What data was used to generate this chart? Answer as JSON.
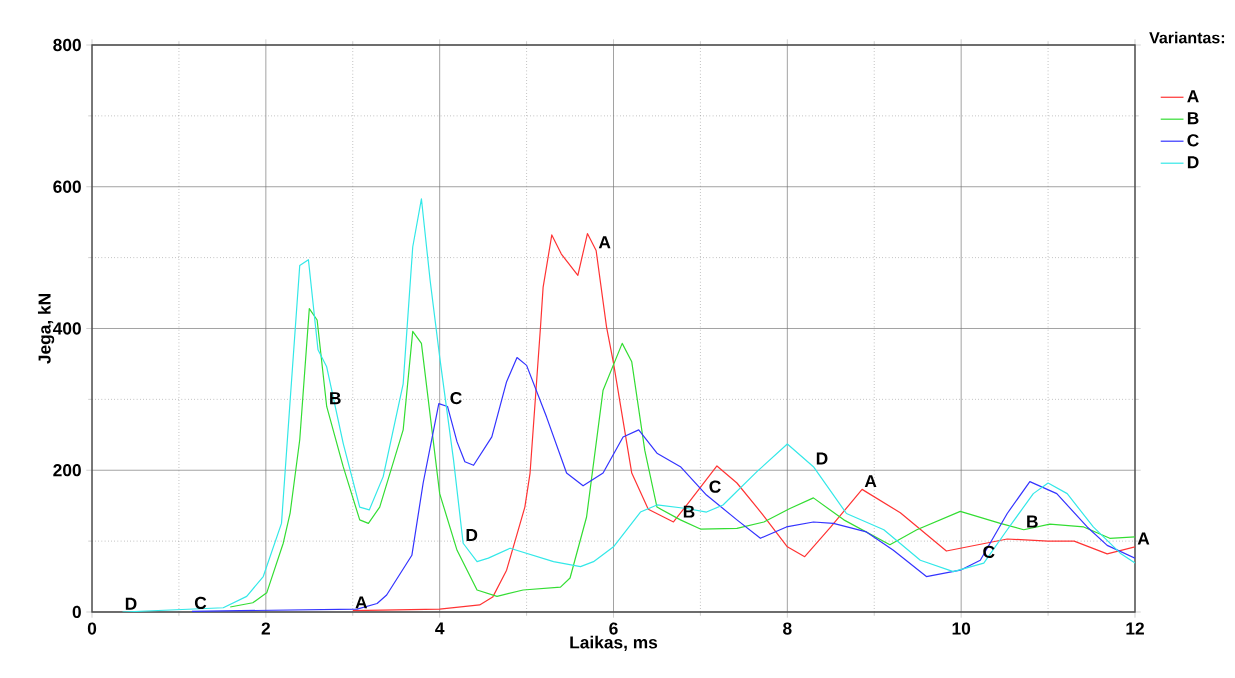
{
  "chart_data": {
    "type": "line",
    "xlabel": "Laikas, ms",
    "ylabel": "Jega, kN",
    "legend_title": "Variantas:",
    "xlim": [
      0,
      12
    ],
    "ylim": [
      0,
      800
    ],
    "xticks": [
      0,
      2,
      4,
      6,
      8,
      10,
      12
    ],
    "yticks": [
      0,
      200,
      400,
      600,
      800
    ],
    "grid": true,
    "legend": "top right",
    "marker": "none",
    "line_style": "solid",
    "series": [
      {
        "name": "A",
        "color": "#ff3333",
        "x": [
          3.0,
          4.0,
          4.46,
          4.61,
          4.77,
          4.98,
          5.04,
          5.16,
          5.19,
          5.29,
          5.4,
          5.59,
          5.7,
          5.8,
          5.92,
          6.0,
          6.21,
          6.4,
          6.69,
          6.9,
          7.19,
          7.42,
          7.7,
          8.0,
          8.2,
          8.5,
          8.86,
          9.3,
          9.83,
          10.53,
          11.0,
          11.3,
          11.68,
          12.0
        ],
        "values": [
          2,
          4,
          10,
          21,
          59,
          148,
          196,
          402,
          458,
          532,
          505,
          475,
          534,
          510,
          402,
          351,
          196,
          145,
          127,
          160,
          206,
          182,
          140,
          92,
          78,
          120,
          173,
          140,
          86,
          103,
          100,
          100,
          82,
          92
        ]
      },
      {
        "name": "B",
        "color": "#33dd33",
        "x": [
          1.59,
          1.85,
          2.01,
          2.2,
          2.28,
          2.39,
          2.5,
          2.59,
          2.7,
          2.89,
          3.08,
          3.18,
          3.31,
          3.58,
          3.69,
          3.79,
          4.0,
          4.2,
          4.43,
          4.66,
          4.96,
          5.39,
          5.5,
          5.69,
          5.88,
          6.1,
          6.21,
          6.36,
          6.5,
          6.77,
          7.0,
          7.42,
          7.73,
          8.03,
          8.3,
          8.65,
          9.18,
          9.49,
          9.99,
          10.45,
          10.72,
          11.02,
          11.41,
          11.71,
          12.0
        ],
        "values": [
          7,
          13,
          27,
          97,
          140,
          243,
          428,
          412,
          290,
          205,
          130,
          125,
          148,
          257,
          396,
          379,
          167,
          87,
          31,
          22,
          31,
          35,
          48,
          134,
          313,
          379,
          353,
          228,
          148,
          130,
          117,
          118,
          127,
          146,
          161,
          130,
          95,
          116,
          142,
          125,
          116,
          124,
          120,
          104,
          106
        ]
      },
      {
        "name": "C",
        "color": "#3333ff",
        "x": [
          1.15,
          3.05,
          3.28,
          3.39,
          3.68,
          3.81,
          3.99,
          4.09,
          4.2,
          4.29,
          4.39,
          4.6,
          4.77,
          4.89,
          5.0,
          5.23,
          5.46,
          5.65,
          5.88,
          6.11,
          6.29,
          6.5,
          6.77,
          7.07,
          7.42,
          7.69,
          7.99,
          8.3,
          8.53,
          8.91,
          9.22,
          9.6,
          9.99,
          10.22,
          10.53,
          10.79,
          11.1,
          11.45,
          11.68,
          12.0
        ],
        "values": [
          1,
          4,
          12,
          24,
          80,
          182,
          294,
          290,
          240,
          212,
          207,
          247,
          325,
          359,
          348,
          275,
          196,
          178,
          196,
          247,
          257,
          224,
          205,
          165,
          130,
          104,
          120,
          127,
          125,
          113,
          87,
          50,
          59,
          73,
          139,
          184,
          167,
          120,
          94,
          76
        ]
      },
      {
        "name": "D",
        "color": "#33e8e8",
        "x": [
          0.35,
          1.51,
          1.78,
          1.97,
          2.18,
          2.28,
          2.39,
          2.49,
          2.6,
          2.7,
          2.89,
          3.08,
          3.19,
          3.35,
          3.58,
          3.69,
          3.79,
          3.89,
          4.0,
          4.16,
          4.27,
          4.43,
          4.56,
          4.81,
          5.31,
          5.62,
          5.77,
          6.0,
          6.31,
          6.5,
          6.84,
          7.07,
          7.26,
          7.65,
          8.0,
          8.3,
          8.68,
          9.11,
          9.53,
          9.91,
          10.26,
          10.53,
          10.83,
          11.0,
          11.22,
          11.52,
          11.83,
          12.0
        ],
        "values": [
          0,
          6,
          22,
          50,
          125,
          299,
          489,
          497,
          370,
          346,
          238,
          148,
          144,
          191,
          322,
          515,
          583,
          468,
          360,
          214,
          97,
          71,
          76,
          90,
          71,
          64,
          71,
          92,
          141,
          151,
          146,
          141,
          151,
          198,
          237,
          205,
          139,
          116,
          73,
          57,
          69,
          116,
          167,
          182,
          167,
          120,
          83,
          69
        ]
      }
    ],
    "annotations": [
      {
        "text": "A",
        "x": 5.8,
        "y": 510
      },
      {
        "text": "A",
        "x": 8.86,
        "y": 173
      },
      {
        "text": "A",
        "x": 12.0,
        "y": 92
      },
      {
        "text": "A",
        "x": 3.0,
        "y": 2
      },
      {
        "text": "B",
        "x": 2.7,
        "y": 290
      },
      {
        "text": "B",
        "x": 6.77,
        "y": 130
      },
      {
        "text": "B",
        "x": 10.72,
        "y": 116
      },
      {
        "text": "C",
        "x": 1.15,
        "y": 1
      },
      {
        "text": "C",
        "x": 4.09,
        "y": 290
      },
      {
        "text": "C",
        "x": 7.07,
        "y": 165
      },
      {
        "text": "C",
        "x": 10.22,
        "y": 73
      },
      {
        "text": "D",
        "x": 0.35,
        "y": 0
      },
      {
        "text": "D",
        "x": 4.27,
        "y": 97
      },
      {
        "text": "D",
        "x": 8.3,
        "y": 205
      }
    ]
  }
}
